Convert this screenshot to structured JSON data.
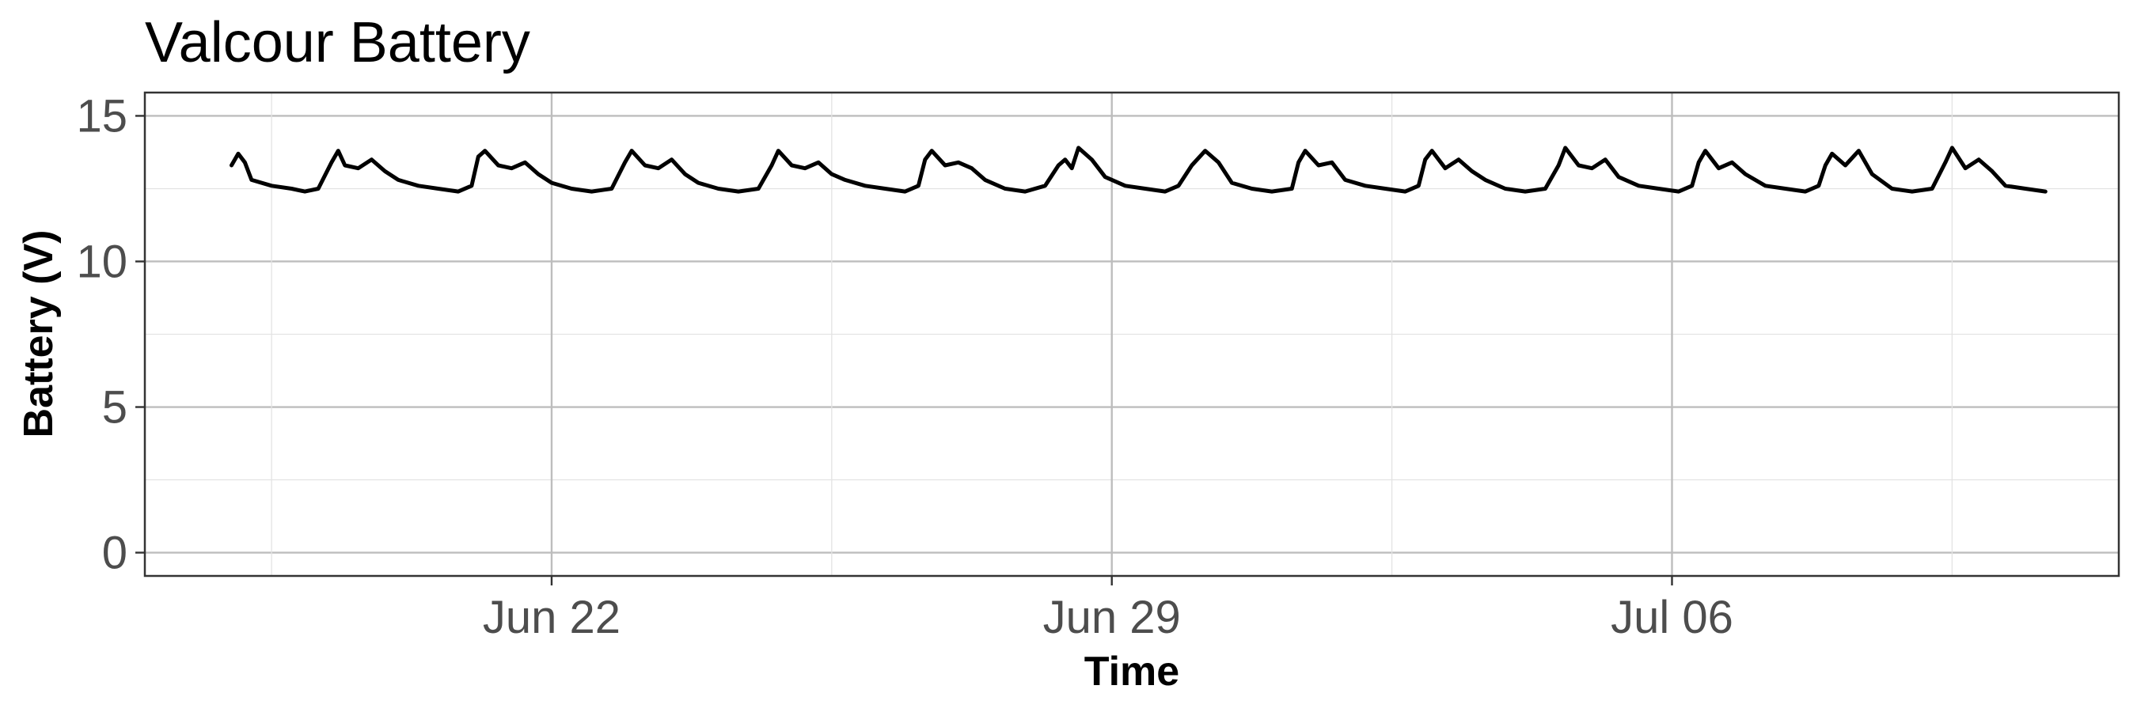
{
  "chart_data": {
    "type": "line",
    "title": "Valcour Battery",
    "xlabel": "Time",
    "ylabel": "Battery (V)",
    "x_ticks": [
      "Jun 22",
      "Jun 29",
      "Jul 06"
    ],
    "y_ticks": [
      "0",
      "5",
      "10",
      "15"
    ],
    "ylim": [
      -0.8,
      15.8
    ],
    "xlim": [
      "2023-06-16T22:00",
      "2023-07-11T14:00"
    ],
    "grid": true,
    "legend": "none",
    "series": [
      {
        "color": "#000000",
        "points": [
          [
            "2023-06-18T00:00",
            13.3
          ],
          [
            "2023-06-18T02:00",
            13.7
          ],
          [
            "2023-06-18T04:00",
            13.4
          ],
          [
            "2023-06-18T06:00",
            12.8
          ],
          [
            "2023-06-18T12:00",
            12.6
          ],
          [
            "2023-06-18T18:00",
            12.5
          ],
          [
            "2023-06-18T22:00",
            12.4
          ],
          [
            "2023-06-19T02:00",
            12.5
          ],
          [
            "2023-06-19T06:00",
            13.4
          ],
          [
            "2023-06-19T08:00",
            13.8
          ],
          [
            "2023-06-19T10:00",
            13.3
          ],
          [
            "2023-06-19T14:00",
            13.2
          ],
          [
            "2023-06-19T18:00",
            13.5
          ],
          [
            "2023-06-19T22:00",
            13.1
          ],
          [
            "2023-06-20T02:00",
            12.8
          ],
          [
            "2023-06-20T08:00",
            12.6
          ],
          [
            "2023-06-20T14:00",
            12.5
          ],
          [
            "2023-06-20T20:00",
            12.4
          ],
          [
            "2023-06-21T00:00",
            12.6
          ],
          [
            "2023-06-21T02:00",
            13.6
          ],
          [
            "2023-06-21T04:00",
            13.8
          ],
          [
            "2023-06-21T08:00",
            13.3
          ],
          [
            "2023-06-21T12:00",
            13.2
          ],
          [
            "2023-06-21T16:00",
            13.4
          ],
          [
            "2023-06-21T20:00",
            13.0
          ],
          [
            "2023-06-22T00:00",
            12.7
          ],
          [
            "2023-06-22T06:00",
            12.5
          ],
          [
            "2023-06-22T12:00",
            12.4
          ],
          [
            "2023-06-22T18:00",
            12.5
          ],
          [
            "2023-06-22T22:00",
            13.4
          ],
          [
            "2023-06-23T00:00",
            13.8
          ],
          [
            "2023-06-23T04:00",
            13.3
          ],
          [
            "2023-06-23T08:00",
            13.2
          ],
          [
            "2023-06-23T12:00",
            13.5
          ],
          [
            "2023-06-23T16:00",
            13.0
          ],
          [
            "2023-06-23T20:00",
            12.7
          ],
          [
            "2023-06-24T02:00",
            12.5
          ],
          [
            "2023-06-24T08:00",
            12.4
          ],
          [
            "2023-06-24T14:00",
            12.5
          ],
          [
            "2023-06-24T18:00",
            13.3
          ],
          [
            "2023-06-24T20:00",
            13.8
          ],
          [
            "2023-06-25T00:00",
            13.3
          ],
          [
            "2023-06-25T04:00",
            13.2
          ],
          [
            "2023-06-25T08:00",
            13.4
          ],
          [
            "2023-06-25T12:00",
            13.0
          ],
          [
            "2023-06-25T16:00",
            12.8
          ],
          [
            "2023-06-25T22:00",
            12.6
          ],
          [
            "2023-06-26T04:00",
            12.5
          ],
          [
            "2023-06-26T10:00",
            12.4
          ],
          [
            "2023-06-26T14:00",
            12.6
          ],
          [
            "2023-06-26T16:00",
            13.5
          ],
          [
            "2023-06-26T18:00",
            13.8
          ],
          [
            "2023-06-26T22:00",
            13.3
          ],
          [
            "2023-06-27T02:00",
            13.4
          ],
          [
            "2023-06-27T06:00",
            13.2
          ],
          [
            "2023-06-27T10:00",
            12.8
          ],
          [
            "2023-06-27T16:00",
            12.5
          ],
          [
            "2023-06-27T22:00",
            12.4
          ],
          [
            "2023-06-28T04:00",
            12.6
          ],
          [
            "2023-06-28T08:00",
            13.3
          ],
          [
            "2023-06-28T10:00",
            13.5
          ],
          [
            "2023-06-28T12:00",
            13.2
          ],
          [
            "2023-06-28T14:00",
            13.9
          ],
          [
            "2023-06-28T18:00",
            13.5
          ],
          [
            "2023-06-28T22:00",
            12.9
          ],
          [
            "2023-06-29T04:00",
            12.6
          ],
          [
            "2023-06-29T10:00",
            12.5
          ],
          [
            "2023-06-29T16:00",
            12.4
          ],
          [
            "2023-06-29T20:00",
            12.6
          ],
          [
            "2023-06-30T00:00",
            13.3
          ],
          [
            "2023-06-30T04:00",
            13.8
          ],
          [
            "2023-06-30T08:00",
            13.4
          ],
          [
            "2023-06-30T12:00",
            12.7
          ],
          [
            "2023-06-30T18:00",
            12.5
          ],
          [
            "2023-07-01T00:00",
            12.4
          ],
          [
            "2023-07-01T06:00",
            12.5
          ],
          [
            "2023-07-01T08:00",
            13.4
          ],
          [
            "2023-07-01T10:00",
            13.8
          ],
          [
            "2023-07-01T14:00",
            13.3
          ],
          [
            "2023-07-01T18:00",
            13.4
          ],
          [
            "2023-07-01T22:00",
            12.8
          ],
          [
            "2023-07-02T04:00",
            12.6
          ],
          [
            "2023-07-02T10:00",
            12.5
          ],
          [
            "2023-07-02T16:00",
            12.4
          ],
          [
            "2023-07-02T20:00",
            12.6
          ],
          [
            "2023-07-02T22:00",
            13.5
          ],
          [
            "2023-07-03T00:00",
            13.8
          ],
          [
            "2023-07-03T04:00",
            13.2
          ],
          [
            "2023-07-03T08:00",
            13.5
          ],
          [
            "2023-07-03T12:00",
            13.1
          ],
          [
            "2023-07-03T16:00",
            12.8
          ],
          [
            "2023-07-03T22:00",
            12.5
          ],
          [
            "2023-07-04T04:00",
            12.4
          ],
          [
            "2023-07-04T10:00",
            12.5
          ],
          [
            "2023-07-04T14:00",
            13.3
          ],
          [
            "2023-07-04T16:00",
            13.9
          ],
          [
            "2023-07-04T20:00",
            13.3
          ],
          [
            "2023-07-05T00:00",
            13.2
          ],
          [
            "2023-07-05T04:00",
            13.5
          ],
          [
            "2023-07-05T08:00",
            12.9
          ],
          [
            "2023-07-05T14:00",
            12.6
          ],
          [
            "2023-07-05T20:00",
            12.5
          ],
          [
            "2023-07-06T02:00",
            12.4
          ],
          [
            "2023-07-06T06:00",
            12.6
          ],
          [
            "2023-07-06T08:00",
            13.4
          ],
          [
            "2023-07-06T10:00",
            13.8
          ],
          [
            "2023-07-06T14:00",
            13.2
          ],
          [
            "2023-07-06T18:00",
            13.4
          ],
          [
            "2023-07-06T22:00",
            13.0
          ],
          [
            "2023-07-07T04:00",
            12.6
          ],
          [
            "2023-07-07T10:00",
            12.5
          ],
          [
            "2023-07-07T16:00",
            12.4
          ],
          [
            "2023-07-07T20:00",
            12.6
          ],
          [
            "2023-07-07T22:00",
            13.3
          ],
          [
            "2023-07-08T00:00",
            13.7
          ],
          [
            "2023-07-08T04:00",
            13.3
          ],
          [
            "2023-07-08T08:00",
            13.8
          ],
          [
            "2023-07-08T12:00",
            13.0
          ],
          [
            "2023-07-08T18:00",
            12.5
          ],
          [
            "2023-07-09T00:00",
            12.4
          ],
          [
            "2023-07-09T06:00",
            12.5
          ],
          [
            "2023-07-09T10:00",
            13.4
          ],
          [
            "2023-07-09T12:00",
            13.9
          ],
          [
            "2023-07-09T16:00",
            13.2
          ],
          [
            "2023-07-09T20:00",
            13.5
          ],
          [
            "2023-07-10T00:00",
            13.1
          ],
          [
            "2023-07-10T04:00",
            12.6
          ],
          [
            "2023-07-10T10:00",
            12.5
          ],
          [
            "2023-07-10T16:00",
            12.4
          ]
        ]
      }
    ]
  }
}
